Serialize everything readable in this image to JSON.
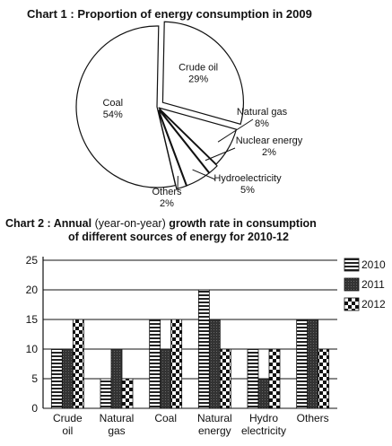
{
  "chart_data": [
    {
      "type": "pie",
      "title": "Chart 1 : Proportion of energy consumption in 2009",
      "slices": [
        {
          "label": "Crude oil",
          "value_label": "29%",
          "value": 29
        },
        {
          "label": "Natural gas",
          "value_label": "8%",
          "value": 8
        },
        {
          "label": "Nuclear energy",
          "value_label": "2%",
          "value": 2
        },
        {
          "label": "Hydroelectricity",
          "value_label": "5%",
          "value": 5
        },
        {
          "label": "Others",
          "value_label": "2%",
          "value": 2
        },
        {
          "label": "Coal",
          "value_label": "54%",
          "value": 54
        }
      ]
    },
    {
      "type": "bar",
      "title_bold_1": "Chart 2 : Annual",
      "title_normal": "(year-on-year)",
      "title_bold_2": "growth rate in consumption",
      "title_line2": "of different sources of energy for 2010-12",
      "categories": [
        [
          "Crude",
          "oil"
        ],
        [
          "Natural",
          "gas"
        ],
        [
          "Coal",
          ""
        ],
        [
          "Natural",
          "energy"
        ],
        [
          "Hydro",
          "electricity"
        ],
        [
          "Others",
          ""
        ]
      ],
      "series": [
        {
          "name": "2010",
          "values": [
            10,
            5,
            15,
            20,
            10,
            15
          ]
        },
        {
          "name": "2011",
          "values": [
            10,
            10,
            10,
            15,
            5,
            15
          ]
        },
        {
          "name": "2012",
          "values": [
            15,
            5,
            15,
            10,
            10,
            10
          ]
        }
      ],
      "ylim": [
        0,
        25
      ],
      "yticks": [
        "0",
        "5",
        "10",
        "15",
        "20",
        "25"
      ],
      "grid": true,
      "legend_position": "right"
    }
  ]
}
